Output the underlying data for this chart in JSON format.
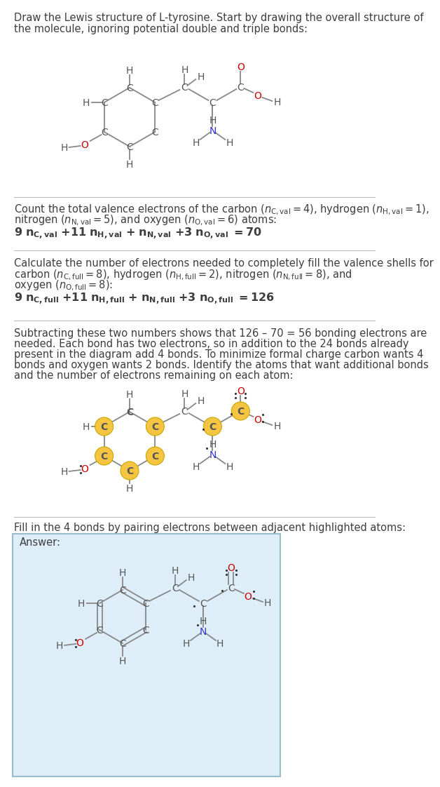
{
  "bg_color": "#ffffff",
  "text_color": "#3d3d3d",
  "C_color": "#555555",
  "H_color": "#555555",
  "O_color": "#cc0000",
  "N_color": "#3333cc",
  "highlight_color": "#f5c542",
  "answer_bg": "#deeef8",
  "divider_color": "#bbbbbb",
  "bond_color": "#888888",
  "sec1_title": "Draw the Lewis structure of L-tyrosine. Start by drawing the overall structure of\nthe molecule, ignoring potential double and triple bonds:",
  "sec2_line1": "Count the total valence electrons of the carbon (",
  "sec2_line2": "nitrogen (",
  "sec2_formula": "9 n_{C,val} + 11 n_{H,val} + n_{N,val} + 3 n_{O,val} = 70",
  "sec3_line1": "Calculate the number of electrons needed to completely fill the valence shells for",
  "sec3_line2": "carbon (",
  "sec3_line3": "oxygen (",
  "sec3_formula": "9 n_{C,full} + 11 n_{H,full} + n_{N,full} + 3 n_{O,full} = 126",
  "sec4_text": "Subtracting these two numbers shows that 126 – 70 = 56 bonding electrons are\nneeded. Each bond has two electrons, so in addition to the 24 bonds already\npresent in the diagram add 4 bonds. To minimize formal charge carbon wants 4\nbonds and oxygen wants 2 bonds. Identify the atoms that want additional bonds\nand the number of electrons remaining on each atom:",
  "sec5_text": "Fill in the 4 bonds by pairing electrons between adjacent highlighted atoms:",
  "answer_label": "Answer:"
}
